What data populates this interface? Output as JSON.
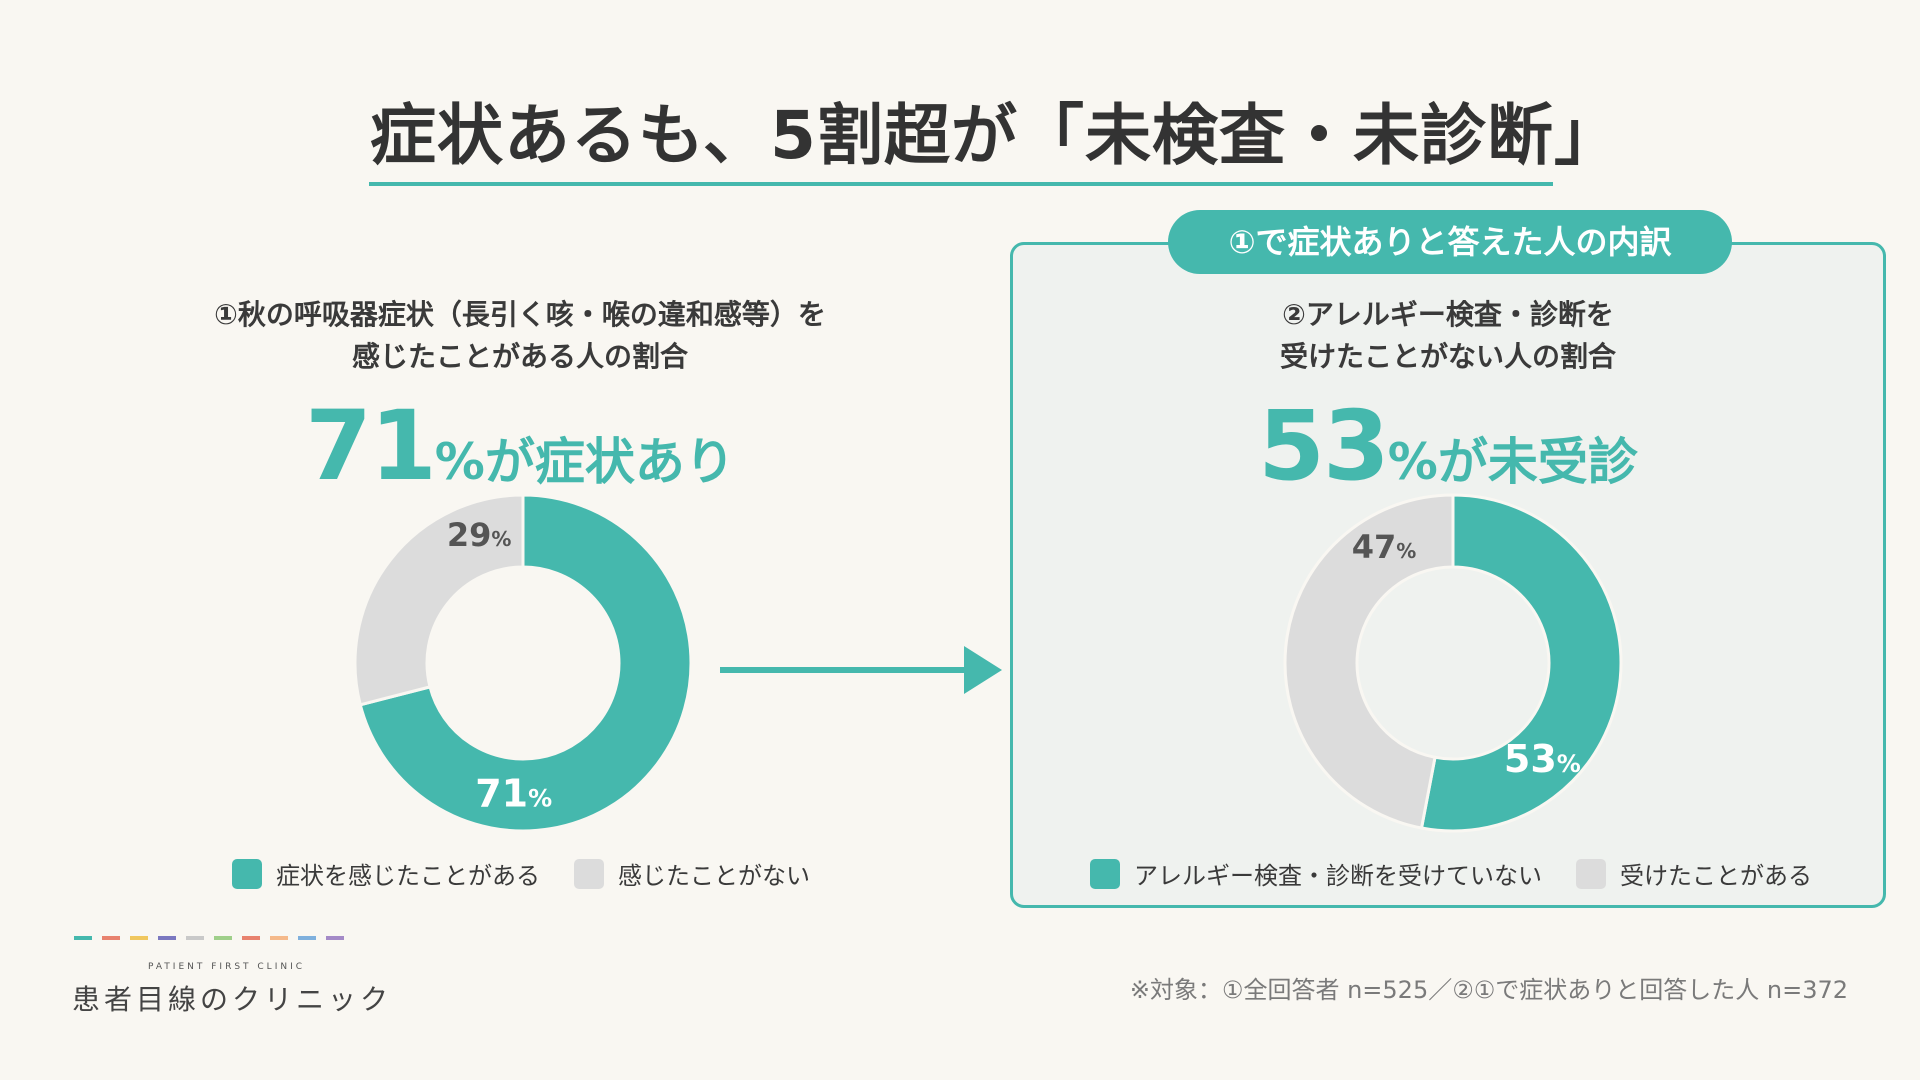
{
  "title": "症状あるも、5割超が「未検査・未診断」",
  "colors": {
    "accent": "#45b8ad",
    "gray": "#dcdcdc",
    "panel_bg": "#eff2ef",
    "background": "#f9f7f2"
  },
  "left": {
    "question_line1": "①秋の呼吸器症状（長引く咳・喉の違和感等）を",
    "question_line2": "感じたことがある人の割合",
    "headline_number": "71",
    "headline_suffix": "%が症状あり"
  },
  "right": {
    "badge": "①で症状ありと答えた人の内訳",
    "question_line1": "②アレルギー検査・診断を",
    "question_line2": "受けたことがない人の割合",
    "headline_number": "53",
    "headline_suffix": "%が未受診"
  },
  "chart_data": [
    {
      "type": "pie",
      "donut": true,
      "categories": [
        "症状を感じたことがある",
        "感じたことがない"
      ],
      "values": [
        71,
        29
      ],
      "value_labels": [
        "71",
        "29"
      ],
      "unit": "%",
      "colors": [
        "#45b8ad",
        "#dcdcdc"
      ],
      "legend_placement": "bottom"
    },
    {
      "type": "pie",
      "donut": true,
      "categories": [
        "アレルギー検査・診断を受けていない",
        "受けたことがある"
      ],
      "values": [
        53,
        47
      ],
      "value_labels": [
        "53",
        "47"
      ],
      "unit": "%",
      "colors": [
        "#45b8ad",
        "#dcdcdc"
      ],
      "legend_placement": "bottom"
    }
  ],
  "brand": {
    "en": "PATIENT FIRST CLINIC",
    "jp": "患者目線のクリニック",
    "dash_colors": [
      "#45b8ad",
      "#e8826e",
      "#f0c75e",
      "#7b78c0",
      "#c9c9c9",
      "#9fcf8a",
      "#e8826e",
      "#f5b98a",
      "#7fb0dd",
      "#a48ac7"
    ]
  },
  "footnote": "※対象：①全回答者 n=525／②①で症状ありと回答した人 n=372"
}
